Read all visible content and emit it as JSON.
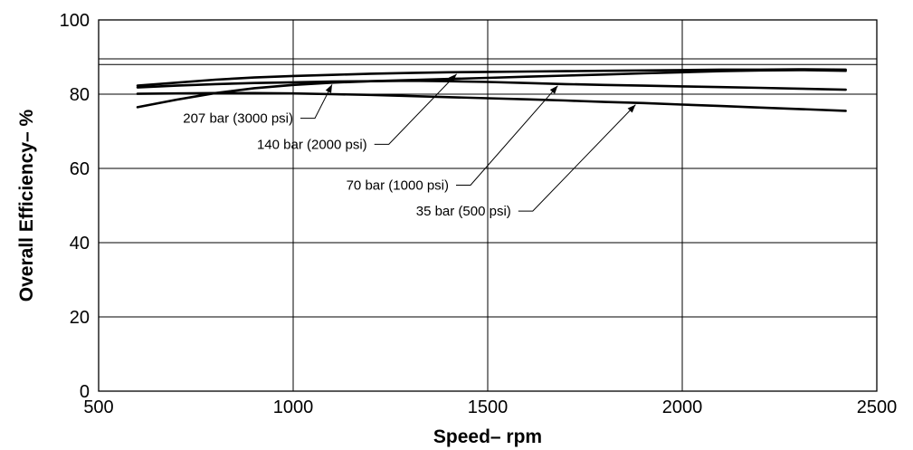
{
  "chart_data": {
    "type": "line",
    "xlabel": "Speed– rpm",
    "ylabel": "Overall Efficiency– %",
    "xlim": [
      500,
      2500
    ],
    "ylim": [
      0,
      100
    ],
    "x_ticks": [
      "500",
      "1000",
      "1500",
      "2000",
      "2500"
    ],
    "y_ticks": [
      "0",
      "20",
      "40",
      "60",
      "80",
      "100"
    ],
    "grid": true,
    "extra_reference_lines_y": [
      88,
      89.5
    ],
    "series": [
      {
        "name": "207 bar (3000 psi)",
        "x": [
          600,
          700,
          800,
          900,
          1000,
          1100,
          1200,
          1300,
          1400,
          1500,
          1600,
          1700,
          1800,
          1900,
          2000,
          2100,
          2200,
          2300,
          2420
        ],
        "y": [
          76.5,
          78.5,
          80.3,
          81.6,
          82.5,
          83.1,
          83.5,
          83.8,
          84.1,
          84.4,
          84.7,
          85.0,
          85.3,
          85.6,
          85.9,
          86.2,
          86.4,
          86.5,
          86.3
        ]
      },
      {
        "name": "140 bar (2000 psi)",
        "x": [
          600,
          700,
          800,
          900,
          1000,
          1100,
          1200,
          1300,
          1400,
          1500,
          1600,
          1700,
          1800,
          1900,
          2000,
          2100,
          2200,
          2300,
          2420
        ],
        "y": [
          82.3,
          83.1,
          83.9,
          84.5,
          84.9,
          85.2,
          85.5,
          85.7,
          85.9,
          86.0,
          86.1,
          86.2,
          86.3,
          86.4,
          86.5,
          86.6,
          86.6,
          86.7,
          86.6
        ]
      },
      {
        "name": "70 bar (1000 psi)",
        "x": [
          600,
          700,
          800,
          900,
          1000,
          1100,
          1200,
          1300,
          1400,
          1500,
          1600,
          1700,
          1800,
          1900,
          2000,
          2100,
          2200,
          2300,
          2420
        ],
        "y": [
          81.8,
          82.3,
          82.7,
          83.0,
          83.2,
          83.4,
          83.5,
          83.6,
          83.5,
          83.3,
          83.0,
          82.7,
          82.5,
          82.3,
          82.1,
          81.9,
          81.7,
          81.5,
          81.2
        ]
      },
      {
        "name": "35 bar (500 psi)",
        "x": [
          600,
          700,
          800,
          900,
          1000,
          1100,
          1200,
          1300,
          1400,
          1500,
          1600,
          1700,
          1800,
          1900,
          2000,
          2100,
          2200,
          2300,
          2420
        ],
        "y": [
          80.1,
          80.2,
          80.3,
          80.3,
          80.2,
          80.0,
          79.8,
          79.5,
          79.2,
          78.9,
          78.6,
          78.3,
          77.9,
          77.6,
          77.2,
          76.8,
          76.4,
          76.0,
          75.5
        ]
      }
    ],
    "annotations": [
      {
        "text": "207 bar (3000 psi)",
        "series": 0,
        "points_to_x": 1100,
        "label_x": 1000,
        "label_y": 73.5
      },
      {
        "text": "140 bar (2000 psi)",
        "series": 1,
        "points_to_x": 1420,
        "label_x": 1190,
        "label_y": 66.5
      },
      {
        "text": "70 bar (1000 psi)",
        "series": 2,
        "points_to_x": 1680,
        "label_x": 1400,
        "label_y": 55.5
      },
      {
        "text": "35 bar (500 psi)",
        "series": 3,
        "points_to_x": 1880,
        "label_x": 1560,
        "label_y": 48.5
      }
    ]
  }
}
